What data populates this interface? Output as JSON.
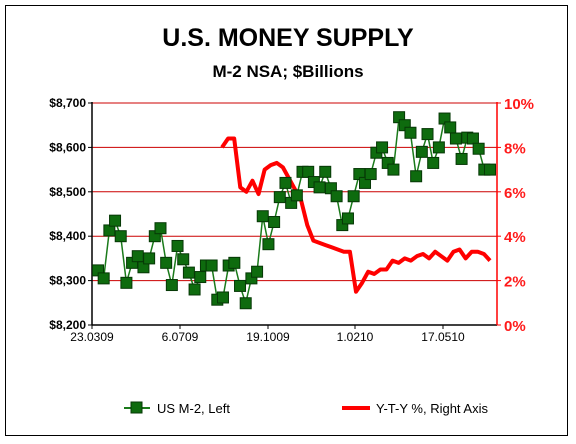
{
  "chart_data": {
    "type": "line",
    "title": "U.S. MONEY SUPPLY",
    "subtitle": "M-2 NSA; $Billions",
    "xlabel": "",
    "x_tick_labels": [
      "23.0309",
      "6.0709",
      "19.1009",
      "1.0210",
      "17.0510"
    ],
    "left_axis": {
      "ylim": [
        8200,
        8700
      ],
      "tick_labels": [
        "$8,200",
        "$8,300",
        "$8,400",
        "$8,500",
        "$8,600",
        "$8,700"
      ],
      "tick_values": [
        8200,
        8300,
        8400,
        8500,
        8600,
        8700
      ]
    },
    "right_axis": {
      "ylim": [
        0,
        10
      ],
      "tick_labels": [
        "0%",
        "2%",
        "4%",
        "6%",
        "8%",
        "10%"
      ],
      "tick_values": [
        0,
        2,
        4,
        6,
        8,
        10
      ],
      "color": "#ff0000"
    },
    "grid": true,
    "grid_color": "#cc0000",
    "legend_position": "bottom",
    "series": [
      {
        "name": "US M-2, Left",
        "axis": "left",
        "color": "#1a7a1a",
        "marker": "square",
        "values": [
          8323,
          8305,
          8413,
          8435,
          8400,
          8295,
          8340,
          8355,
          8330,
          8350,
          8400,
          8418,
          8340,
          8290,
          8378,
          8348,
          8318,
          8280,
          8308,
          8334,
          8334,
          8257,
          8262,
          8334,
          8340,
          8288,
          8249,
          8305,
          8320,
          8445,
          8382,
          8432,
          8488,
          8520,
          8475,
          8492,
          8545,
          8545,
          8522,
          8510,
          8545,
          8508,
          8490,
          8425,
          8440,
          8490,
          8540,
          8520,
          8540,
          8588,
          8600,
          8565,
          8550,
          8668,
          8650,
          8633,
          8535,
          8590,
          8630,
          8565,
          8600,
          8665,
          8645,
          8620,
          8574,
          8622,
          8620,
          8597,
          8550,
          8550
        ]
      },
      {
        "name": "Y-T-Y %, Right Axis",
        "axis": "right",
        "color": "#ff0000",
        "marker": "none",
        "values": [
          8.0,
          8.4,
          8.4,
          6.2,
          6.0,
          6.5,
          5.9,
          7.0,
          7.2,
          7.3,
          7.1,
          6.6,
          6.1,
          5.6,
          4.5,
          3.8,
          3.7,
          3.6,
          3.5,
          3.4,
          3.3,
          3.3,
          1.5,
          1.9,
          2.4,
          2.3,
          2.5,
          2.5,
          2.9,
          2.8,
          3.0,
          2.9,
          3.1,
          3.2,
          3.0,
          3.3,
          3.1,
          2.9,
          3.3,
          3.4,
          3.0,
          3.3,
          3.3,
          3.2,
          2.9
        ]
      }
    ]
  }
}
